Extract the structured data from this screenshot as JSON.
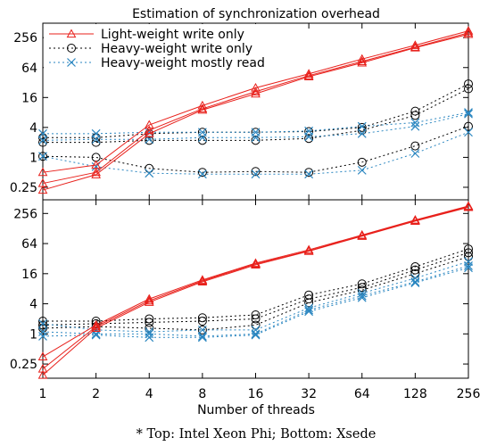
{
  "chart_data": {
    "type": "line",
    "title": "Estimation of synchronization overhead",
    "xlabel": "Number of threads",
    "caption": "* Top: Intel Xeon Phi; Bottom: Xsede",
    "x": [
      1,
      2,
      4,
      8,
      16,
      32,
      64,
      128,
      256
    ],
    "xscale": "log2",
    "yscale": "log4",
    "legend_position": "top-left",
    "legend": [
      {
        "name": "Light-weight write only",
        "color": "#e8201b",
        "dash": "solid",
        "marker": "triangle"
      },
      {
        "name": "Heavy-weight write only",
        "color": "#000000",
        "dash": "dotted",
        "marker": "circle"
      },
      {
        "name": "Heavy-weight mostly read",
        "color": "#2a86c0",
        "dash": "dotted",
        "marker": "x"
      }
    ],
    "panels": [
      {
        "name": "Top",
        "ylim": [
          0.14,
          500
        ],
        "yticks": [
          0.25,
          1,
          4,
          16,
          64,
          256
        ],
        "ytick_labels": [
          "0.25",
          "1",
          "4",
          "16",
          "64",
          "256"
        ],
        "series": [
          {
            "group": 0,
            "values": [
              0.5,
              0.7,
              4.5,
              11,
              25,
              48,
              95,
              180,
              350
            ]
          },
          {
            "group": 0,
            "values": [
              0.3,
              0.5,
              3.5,
              9.5,
              21,
              44,
              85,
              165,
              320
            ]
          },
          {
            "group": 0,
            "values": [
              0.22,
              0.45,
              3,
              9,
              19,
              42,
              80,
              160,
              300
            ]
          },
          {
            "group": 1,
            "values": [
              2,
              2,
              2.2,
              2.2,
              2.2,
              2.4,
              3.5,
              7,
              24
            ]
          },
          {
            "group": 1,
            "values": [
              1.05,
              1,
              0.6,
              0.5,
              0.52,
              0.5,
              0.8,
              1.7,
              4.2
            ]
          },
          {
            "group": 1,
            "values": [
              2.5,
              2.5,
              3,
              3.2,
              3.2,
              3.3,
              4,
              8.5,
              30
            ]
          },
          {
            "group": 2,
            "values": [
              3,
              3,
              3.2,
              3.2,
              3.2,
              3.4,
              4.2,
              5,
              8
            ]
          },
          {
            "group": 2,
            "values": [
              1.05,
              0.65,
              0.48,
              0.46,
              0.46,
              0.46,
              0.55,
              1.2,
              3.2
            ]
          },
          {
            "group": 2,
            "values": [
              2.2,
              2.3,
              2.3,
              2.5,
              2.5,
              2.6,
              3,
              4.2,
              7.5
            ]
          }
        ]
      },
      {
        "name": "Bottom",
        "ylim": [
          0.13,
          480
        ],
        "yticks": [
          0.25,
          1,
          4,
          16,
          64,
          256
        ],
        "ytick_labels": [
          "0.25",
          "1",
          "4",
          "16",
          "64",
          "256"
        ],
        "series": [
          {
            "group": 0,
            "values": [
              0.35,
              1.5,
              5,
              12,
              26,
              48,
              95,
              190,
              360
            ]
          },
          {
            "group": 0,
            "values": [
              0.2,
              1.4,
              4.6,
              11.5,
              25,
              46,
              92,
              185,
              350
            ]
          },
          {
            "group": 0,
            "values": [
              0.15,
              1.3,
              4.3,
              11,
              24,
              45,
              90,
              180,
              340
            ]
          },
          {
            "group": 1,
            "values": [
              1.8,
              1.8,
              2,
              2.1,
              2.4,
              6,
              10,
              22,
              50
            ]
          },
          {
            "group": 1,
            "values": [
              1.5,
              1.6,
              1.7,
              1.8,
              2,
              5,
              8.5,
              19,
              42
            ]
          },
          {
            "group": 1,
            "values": [
              1.3,
              1.4,
              1.3,
              1.2,
              1.5,
              4.2,
              7.5,
              16,
              35
            ]
          },
          {
            "group": 2,
            "values": [
              1.6,
              1.2,
              1.1,
              1.2,
              1.2,
              3.3,
              6.5,
              13,
              28
            ]
          },
          {
            "group": 2,
            "values": [
              1.1,
              1.0,
              1.0,
              0.9,
              1.0,
              3.0,
              5.8,
              11,
              23
            ]
          },
          {
            "group": 2,
            "values": [
              0.9,
              0.95,
              0.85,
              0.85,
              0.95,
              2.8,
              5.3,
              10.5,
              21
            ]
          }
        ]
      }
    ]
  }
}
